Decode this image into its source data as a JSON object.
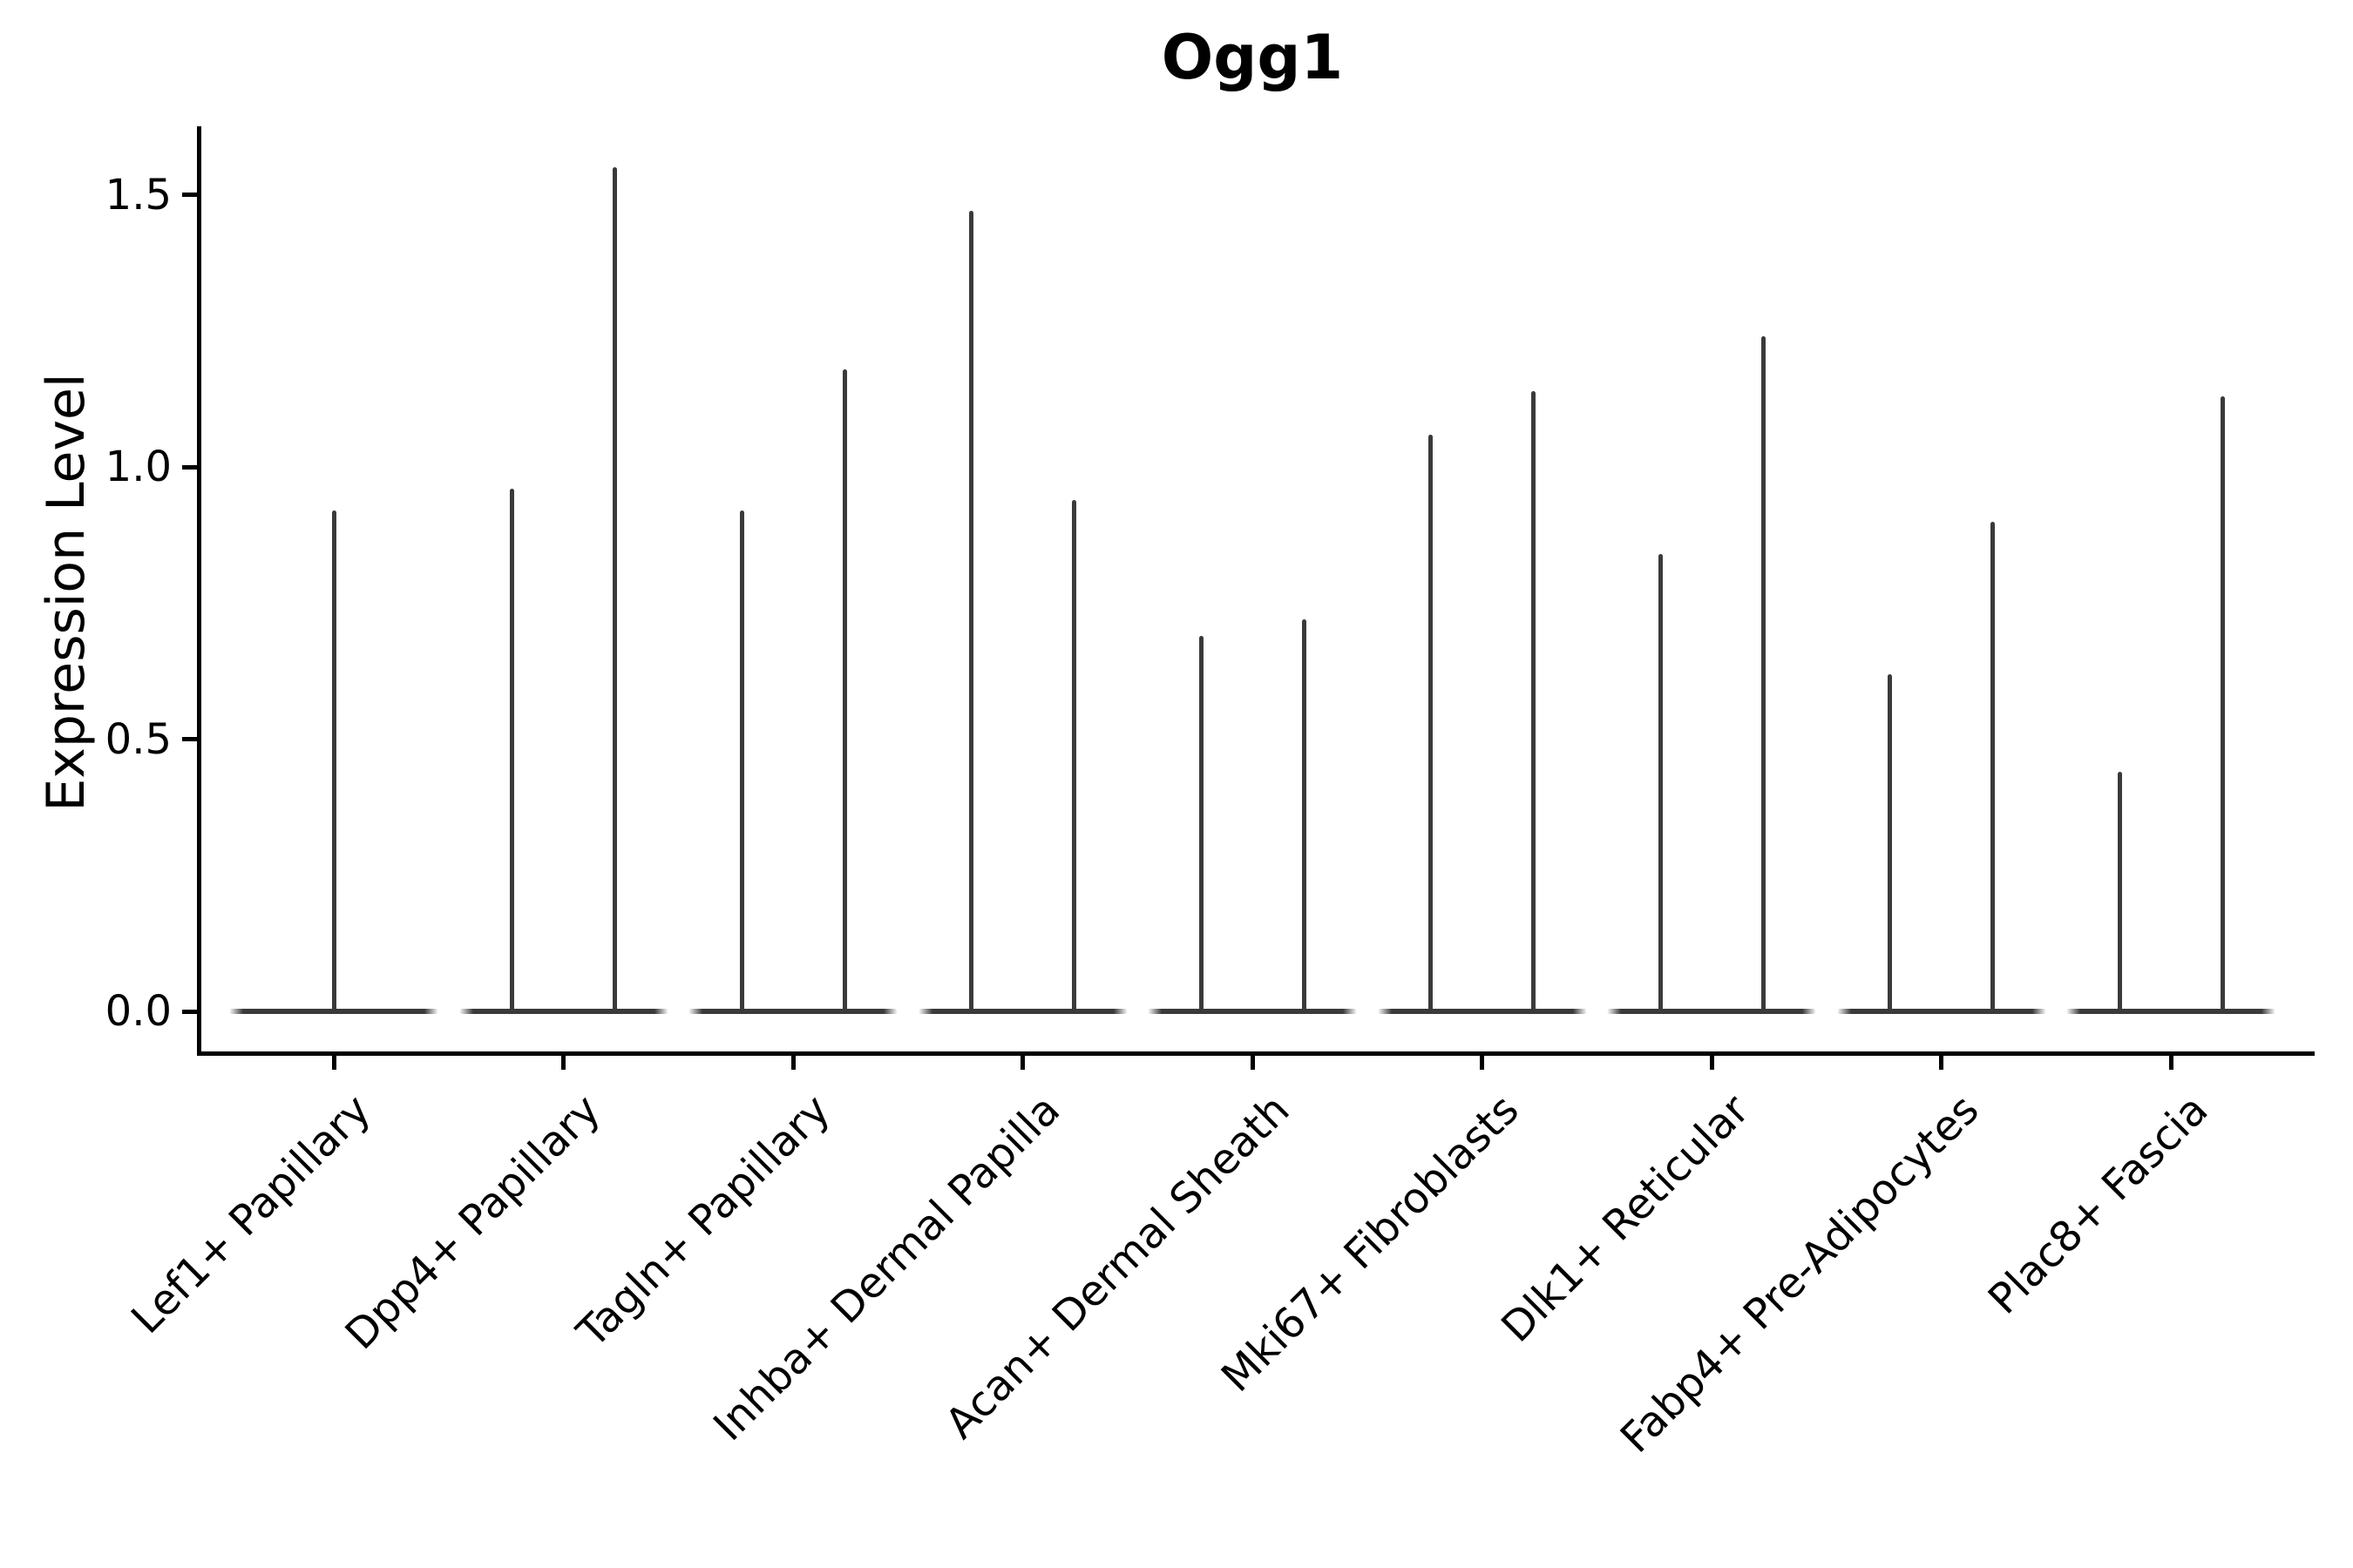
{
  "title": "Ogg1",
  "y_axis": {
    "label": "Expression Level",
    "ticks": [
      "0.0",
      "0.5",
      "1.0",
      "1.5"
    ],
    "tick_values": [
      0.0,
      0.5,
      1.0,
      1.5
    ]
  },
  "colors": {
    "violin": "#3a3a3a",
    "axis": "#000000",
    "background": "#ffffff"
  },
  "chart_data": {
    "type": "violin",
    "title": "Ogg1",
    "xlabel": "",
    "ylabel": "Expression Level",
    "ylim": [
      0,
      1.63
    ],
    "grid": false,
    "legend": "none",
    "description": "Violin plot of Ogg1 expression per fibroblast cluster; each violin collapses to a flat bar at 0 with thin spikes reaching the maximum expression of rare positive cells. First category shows one centered spike; all others show two spikes.",
    "categories": [
      "Lef1+ Papillary",
      "Dpp4+ Papillary",
      "Tagln+ Papillary",
      "Inhba+ Dermal Papilla",
      "Acan+ Dermal Sheath",
      "Mki67+ Fibroblasts",
      "Dlk1+ Reticular",
      "Fabp4+ Pre-Adipocytes",
      "Plac8+ Fascia"
    ],
    "series": [
      {
        "category": "Lef1+ Papillary",
        "spike_max_values": [
          0.92
        ],
        "spike_offsets": [
          0
        ]
      },
      {
        "category": "Dpp4+ Papillary",
        "spike_max_values": [
          0.96,
          1.55
        ],
        "spike_offsets": [
          -59,
          59
        ]
      },
      {
        "category": "Tagln+ Papillary",
        "spike_max_values": [
          0.92,
          1.18
        ],
        "spike_offsets": [
          -59,
          59
        ]
      },
      {
        "category": "Inhba+ Dermal Papilla",
        "spike_max_values": [
          1.47,
          0.94
        ],
        "spike_offsets": [
          -59,
          59
        ]
      },
      {
        "category": "Acan+ Dermal Sheath",
        "spike_max_values": [
          0.69,
          0.72
        ],
        "spike_offsets": [
          -59,
          59
        ]
      },
      {
        "category": "Mki67+ Fibroblasts",
        "spike_max_values": [
          1.06,
          1.14
        ],
        "spike_offsets": [
          -59,
          59
        ]
      },
      {
        "category": "Dlk1+ Reticular",
        "spike_max_values": [
          0.84,
          1.24
        ],
        "spike_offsets": [
          -59,
          59
        ]
      },
      {
        "category": "Fabp4+ Pre-Adipocytes",
        "spike_max_values": [
          0.62,
          0.9
        ],
        "spike_offsets": [
          -59,
          59
        ]
      },
      {
        "category": "Plac8+ Fascia",
        "spike_max_values": [
          0.44,
          1.13
        ],
        "spike_offsets": [
          -59,
          59
        ]
      }
    ]
  }
}
